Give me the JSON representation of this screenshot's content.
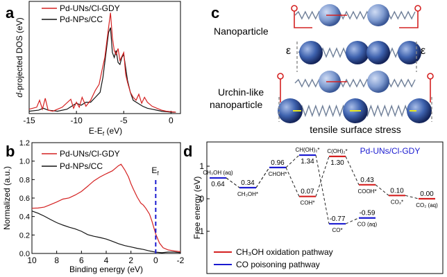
{
  "panel_labels": {
    "a": "a",
    "b": "b",
    "c": "c",
    "d": "d"
  },
  "colors": {
    "red": "#d42020",
    "black": "#111111",
    "blue": "#1a1ad0",
    "sphere": "#2f4f9a",
    "spring": "#7a8aa0",
    "arrow_red": "#d42020",
    "arrow_yellow": "#e8e820"
  },
  "chart_data": [
    {
      "panel": "a",
      "type": "line",
      "xlabel": "E-E",
      "xlabel_sub": "f",
      "xlabel_unit": " (eV)",
      "ylabel": "d-projected DOS (eV)",
      "xlim": [
        -15,
        1
      ],
      "xticks": [
        "-15",
        "-10",
        "-5",
        "0"
      ],
      "xtick_values": [
        -15,
        -10,
        -5,
        0
      ],
      "legend": [
        "Pd-UNs/Cl-GDY",
        "Pd-NPs/CC"
      ],
      "series": [
        {
          "name": "Pd-UNs/Cl-GDY",
          "color": "red",
          "x": [
            -15,
            -14.2,
            -13.9,
            -13.6,
            -13.3,
            -13.0,
            -12.5,
            -11.5,
            -10.6,
            -10.3,
            -10.0,
            -9.7,
            -9.4,
            -9.0,
            -8.5,
            -8.0,
            -7.6,
            -7.3,
            -7.0,
            -6.8,
            -6.6,
            -6.4,
            -6.2,
            -6.0,
            -5.8,
            -5.6,
            -5.4,
            -5.2,
            -5.0,
            -4.8,
            -4.6,
            -4.3,
            -4.0,
            -3.7,
            -3.4,
            -3.1,
            -2.8,
            -2.5,
            -2.0,
            -1.5,
            -1.0,
            -0.5,
            0,
            0.5
          ],
          "y": [
            0.3,
            0.5,
            1.2,
            0.3,
            1.4,
            0.2,
            0.1,
            0.5,
            1.3,
            0.4,
            1.0,
            0.5,
            1.5,
            0.6,
            1.2,
            2.2,
            2.8,
            4.2,
            5.5,
            7.0,
            8.5,
            10.0,
            7.5,
            6.2,
            5.8,
            6.4,
            5.2,
            5.6,
            6.0,
            3.8,
            3.0,
            2.0,
            1.5,
            1.2,
            1.8,
            0.9,
            1.5,
            1.0,
            0.6,
            0.4,
            0.2,
            0.1,
            0.05,
            0
          ]
        },
        {
          "name": "Pd-NPs/CC",
          "color": "black",
          "x": [
            -15,
            -14.0,
            -13.5,
            -13.0,
            -12.0,
            -11.0,
            -10.5,
            -10.0,
            -9.5,
            -9.0,
            -8.5,
            -8.0,
            -7.5,
            -7.2,
            -7.0,
            -6.8,
            -6.6,
            -6.4,
            -6.2,
            -6.0,
            -5.8,
            -5.6,
            -5.4,
            -5.2,
            -5.0,
            -4.8,
            -4.6,
            -4.3,
            -4.0,
            -3.5,
            -3.0,
            -2.5,
            -2.0,
            -1.5,
            -1.0,
            -0.5,
            0,
            0.5
          ],
          "y": [
            0.1,
            0.2,
            0.4,
            0.2,
            0.1,
            0.3,
            0.6,
            0.9,
            0.7,
            1.0,
            1.0,
            1.5,
            2.0,
            3.5,
            5.0,
            6.5,
            8.0,
            8.5,
            6.0,
            5.5,
            6.2,
            5.0,
            4.8,
            5.5,
            5.8,
            4.5,
            3.2,
            2.0,
            1.2,
            0.9,
            0.6,
            0.4,
            0.3,
            0.2,
            0.1,
            0.05,
            0,
            0
          ]
        }
      ]
    },
    {
      "panel": "b",
      "type": "line",
      "xlabel": "Binding energy (eV)",
      "ylabel": "Normalized (a.u.)",
      "xlim": [
        10,
        -2
      ],
      "ylim": [
        0,
        1.2
      ],
      "xticks": [
        "10",
        "8",
        "6",
        "4",
        "2",
        "0",
        "-2"
      ],
      "xtick_values": [
        10,
        8,
        6,
        4,
        2,
        0,
        -2
      ],
      "yticks": [
        "0.0",
        "0.2",
        "0.4",
        "0.6",
        "0.8",
        "1.0",
        "1.2"
      ],
      "ytick_values": [
        0,
        0.2,
        0.4,
        0.6,
        0.8,
        1.0,
        1.2
      ],
      "legend": [
        "Pd-UNs/Cl-GDY",
        "Pd-NPs/CC"
      ],
      "fermi_label": "E",
      "fermi_sub": "f",
      "series": [
        {
          "name": "Pd-UNs/Cl-GDY",
          "color": "red",
          "x": [
            10,
            9.5,
            9,
            8.5,
            8,
            7.5,
            7,
            6.5,
            6,
            5.5,
            5,
            4.5,
            4,
            3.5,
            3,
            2.8,
            2.5,
            2.2,
            2,
            1.8,
            1.5,
            1.2,
            1,
            0.8,
            0.5,
            0.3,
            0,
            -0.3,
            -0.6,
            -1,
            -1.5,
            -2
          ],
          "y": [
            0.49,
            0.5,
            0.51,
            0.53,
            0.55,
            0.58,
            0.6,
            0.64,
            0.68,
            0.73,
            0.78,
            0.82,
            0.86,
            0.9,
            0.96,
            0.97,
            0.9,
            0.82,
            0.75,
            0.7,
            0.62,
            0.55,
            0.52,
            0.48,
            0.42,
            0.35,
            0.22,
            0.12,
            0.06,
            0.03,
            0.02,
            0.02
          ]
        },
        {
          "name": "Pd-NPs/CC",
          "color": "black",
          "x": [
            10,
            9.5,
            9,
            8.5,
            8,
            7.5,
            7,
            6.5,
            6,
            5.5,
            5,
            4.5,
            4,
            3.5,
            3,
            2.5,
            2,
            1.5,
            1,
            0.5,
            0,
            -0.5,
            -1,
            -1.5,
            -2
          ],
          "y": [
            0.46,
            0.43,
            0.4,
            0.37,
            0.34,
            0.31,
            0.28,
            0.26,
            0.24,
            0.21,
            0.19,
            0.17,
            0.15,
            0.13,
            0.11,
            0.09,
            0.07,
            0.05,
            0.04,
            0.03,
            0.02,
            0.01,
            0.01,
            0.01,
            0.01
          ]
        }
      ]
    },
    {
      "panel": "d",
      "type": "line",
      "title": "Pd-UNs/Cl-GDY",
      "ylabel": "Free energy (eV)",
      "ylim": [
        -1.1,
        1.6
      ],
      "yticks": [
        "-1",
        "0",
        "1"
      ],
      "ytick_values": [
        -1,
        0,
        1
      ],
      "legend": [
        "CH₃OH oxidation pathway",
        "CO poisoning pathway"
      ],
      "states": [
        {
          "species": "CH₃OH (aq)",
          "value": "0.64",
          "y": 0.64,
          "pos": 0,
          "color": "blue",
          "vpos": "below"
        },
        {
          "species": "CH₃OH*",
          "value": "0.34",
          "y": 0.34,
          "pos": 1,
          "color": "blue",
          "vpos": "above"
        },
        {
          "species": "CHOH*",
          "value": "0.96",
          "y": 0.96,
          "pos": 2,
          "color": "blue",
          "vpos": "above"
        },
        {
          "species": "CH(OH)₂*",
          "value": "1.34",
          "y": 1.34,
          "pos": 3,
          "color": "blue",
          "vpos": "below"
        },
        {
          "species": "COH*",
          "value": "0.07",
          "y": 0.07,
          "pos": 3,
          "color": "red",
          "vpos": "above"
        },
        {
          "species": "C(OH)₂*",
          "value": "1.30",
          "y": 1.3,
          "pos": 4,
          "color": "red",
          "vpos": "below"
        },
        {
          "species": "CO*",
          "value": "-0.77",
          "y": -0.77,
          "pos": 4,
          "color": "blue",
          "vpos": "above"
        },
        {
          "species": "COOH*",
          "value": "0.43",
          "y": 0.43,
          "pos": 5,
          "color": "red",
          "vpos": "above"
        },
        {
          "species": "CO (aq)",
          "value": "-0.59",
          "y": -0.59,
          "pos": 5,
          "color": "blue",
          "vpos": "above"
        },
        {
          "species": "CO₂*",
          "value": "0.10",
          "y": 0.1,
          "pos": 6,
          "color": "red",
          "vpos": "above"
        },
        {
          "species": "CO₂ (aq)",
          "value": "0.00",
          "y": 0.0,
          "pos": 7,
          "color": "red",
          "vpos": "above"
        }
      ],
      "red_path": [
        "CH₃OH (aq)",
        "CH₃OH*",
        "CHOH*",
        "COH*",
        "C(OH)₂*",
        "COOH*",
        "CO₂*",
        "CO₂ (aq)"
      ],
      "blue_path": [
        "CH₃OH (aq)",
        "CH₃OH*",
        "CHOH*",
        "CH(OH)₂*",
        "CO*",
        "CO (aq)"
      ]
    }
  ],
  "panel_c": {
    "row1_label": "Nanoparticle",
    "row2_label_line1": "Urchin-like",
    "row2_label_line2": "nanoparticle",
    "strain_symbol": "ε",
    "caption": "tensile surface stress"
  }
}
